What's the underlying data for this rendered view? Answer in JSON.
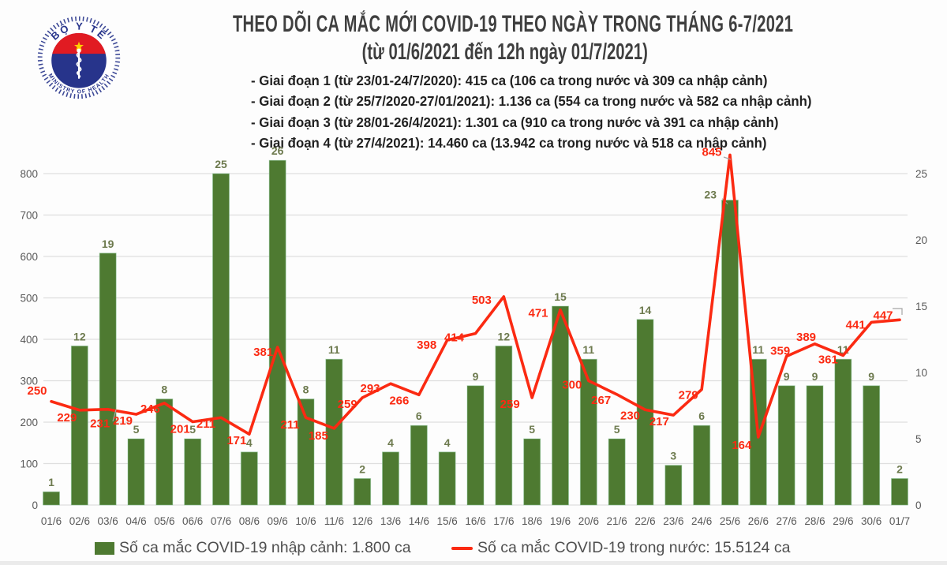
{
  "header": {
    "title": "THEO DÕI CA MẮC MỚI COVID-19 THEO NGÀY TRONG THÁNG 6-7/2021",
    "subtitle": "(từ 01/6/2021 đến 12h ngày 01/7/2021)",
    "phases": [
      "- Giai đoạn 1 (từ 23/01-24/7/2020): 415 ca (106 ca trong nước và 309 ca nhập cảnh)",
      "- Giai đoạn 2 (từ 25/7/2020-27/01/2021): 1.136 ca (554 ca trong nước và 582 ca nhập cảnh)",
      "- Giai đoạn 3 (từ 28/01-26/4/2021): 1.301 ca (910 ca trong nước và 391 ca nhập cảnh)",
      "- Giai đoạn 4 (từ 27/4/2021): 14.460 ca (13.942 ca trong nước và 518 ca nhập cảnh)"
    ]
  },
  "logo": {
    "top_text": "BỘ Y TẾ",
    "bottom_text": "MINISTRY OF HEALTH"
  },
  "chart_data": {
    "type": "bar+line",
    "categories": [
      "01/6",
      "02/6",
      "03/6",
      "04/6",
      "05/6",
      "06/6",
      "07/6",
      "08/6",
      "09/6",
      "10/6",
      "11/6",
      "12/6",
      "13/6",
      "14/6",
      "15/6",
      "16/6",
      "17/6",
      "18/6",
      "19/6",
      "20/6",
      "21/6",
      "22/6",
      "23/6",
      "24/6",
      "25/6",
      "26/6",
      "27/6",
      "28/6",
      "29/6",
      "30/6",
      "01/7"
    ],
    "series": [
      {
        "name": "Số ca mắc COVID-19 nhập cảnh",
        "type": "bar",
        "axis": "right",
        "values": [
          1,
          12,
          19,
          5,
          8,
          5,
          25,
          4,
          26,
          8,
          11,
          2,
          4,
          6,
          4,
          9,
          12,
          5,
          15,
          11,
          5,
          14,
          3,
          6,
          23,
          11,
          9,
          9,
          11,
          9,
          2
        ]
      },
      {
        "name": "Số ca mắc COVID-19 trong nước",
        "type": "line",
        "axis": "left",
        "values": [
          250,
          229,
          231,
          219,
          246,
          201,
          211,
          171,
          381,
          211,
          185,
          259,
          293,
          266,
          398,
          414,
          503,
          259,
          471,
          300,
          267,
          230,
          217,
          279,
          845,
          164,
          359,
          389,
          361,
          441,
          447
        ]
      }
    ],
    "left_axis": {
      "min": 0,
      "max": 800,
      "step": 100,
      "ticks": [
        0,
        100,
        200,
        300,
        400,
        500,
        600,
        700,
        800
      ]
    },
    "right_axis": {
      "min": 0,
      "max": 25,
      "step": 5,
      "ticks": [
        0,
        5,
        10,
        15,
        20,
        25
      ]
    },
    "grid": true,
    "legend_position": "bottom",
    "title": "THEO DÕI CA MẮC MỚI COVID-19 THEO NGÀY TRONG THÁNG 6-7/2021"
  },
  "legend": {
    "bar_label": "Số ca mắc COVID-19 nhập cảnh: 1.800 ca",
    "line_label": "Số ca mắc COVID-19 trong nước: 15.5124 ca"
  },
  "colors": {
    "bar": "#4e7a31",
    "bar_edge": "#8cc79b",
    "bar_label": "#6d7a4e",
    "line": "#fb2a12",
    "grid": "#dedede",
    "axis_text": "#595959",
    "leader": "#a6a6a6",
    "logo_blue": "#27348b",
    "logo_red": "#e11b22",
    "logo_star": "#ffd100"
  }
}
